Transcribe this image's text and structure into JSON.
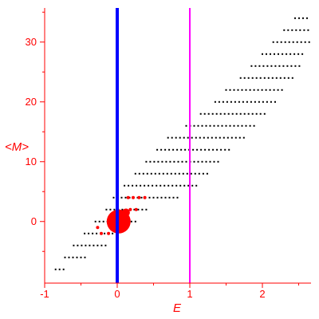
{
  "chart_data": {
    "type": "scatter",
    "title": "",
    "xlabel": "E",
    "ylabel": "<M>",
    "xlim": [
      -1,
      2.67
    ],
    "ylim": [
      -10.3,
      35.7
    ],
    "xticks": [
      -1,
      0,
      1,
      2
    ],
    "yticks": [
      0,
      10,
      20,
      30
    ],
    "grid": false,
    "legend": "none",
    "colors": {
      "axis": "#ff0000",
      "points": "#000000",
      "highlight": "#ff0000",
      "line_a": "#0000ff",
      "line_b": "#ff00ff"
    },
    "vertical_lines": [
      {
        "x": 0,
        "color": "#0000ff"
      },
      {
        "x": 1,
        "color": "#ff00ff"
      }
    ],
    "series": [
      {
        "color": "#000000",
        "bands": [
          {
            "y": -8,
            "x": [
              -0.85,
              -0.72
            ]
          },
          {
            "y": -6,
            "x": [
              -0.72,
              -0.42
            ]
          },
          {
            "y": -4,
            "x": [
              -0.6,
              -0.15
            ]
          },
          {
            "y": -2,
            "x": [
              -0.45,
              0.0
            ]
          },
          {
            "y": 0,
            "x": [
              -0.3,
              0.25
            ]
          },
          {
            "y": 2,
            "x": [
              -0.15,
              0.4
            ]
          },
          {
            "y": 4,
            "x": [
              -0.05,
              0.85
            ]
          },
          {
            "y": 6,
            "x": [
              0.1,
              1.1
            ]
          },
          {
            "y": 8,
            "x": [
              0.25,
              1.25
            ]
          },
          {
            "y": 10,
            "x": [
              0.4,
              1.4
            ]
          },
          {
            "y": 12,
            "x": [
              0.55,
              1.55
            ]
          },
          {
            "y": 14,
            "x": [
              0.7,
              1.75
            ]
          },
          {
            "y": 16,
            "x": [
              0.95,
              1.9
            ]
          },
          {
            "y": 18,
            "x": [
              1.15,
              2.05
            ]
          },
          {
            "y": 20,
            "x": [
              1.35,
              2.2
            ]
          },
          {
            "y": 22,
            "x": [
              1.5,
              2.3
            ]
          },
          {
            "y": 24,
            "x": [
              1.7,
              2.45
            ]
          },
          {
            "y": 26,
            "x": [
              1.85,
              2.55
            ]
          },
          {
            "y": 28,
            "x": [
              2.0,
              2.6
            ]
          },
          {
            "y": 30,
            "x": [
              2.15,
              2.65
            ]
          },
          {
            "y": 32,
            "x": [
              2.3,
              2.65
            ]
          },
          {
            "y": 34,
            "x": [
              2.45,
              2.65
            ]
          }
        ]
      },
      {
        "color": "#ff0000",
        "points": [
          {
            "x": 0.02,
            "y": 0.0,
            "size": "large"
          },
          {
            "x": 0.12,
            "y": 1.5,
            "size": "medium"
          },
          {
            "x": 0.18,
            "y": 2.0,
            "size": "small"
          },
          {
            "x": 0.26,
            "y": 2.0,
            "size": "small"
          },
          {
            "x": 0.15,
            "y": 4.0,
            "size": "small"
          },
          {
            "x": 0.22,
            "y": 4.0,
            "size": "small"
          },
          {
            "x": 0.3,
            "y": 4.0,
            "size": "small"
          },
          {
            "x": 0.38,
            "y": 4.0,
            "size": "small"
          },
          {
            "x": -0.27,
            "y": -1.0,
            "size": "small"
          },
          {
            "x": -0.22,
            "y": -2.0,
            "size": "small"
          },
          {
            "x": -0.12,
            "y": -2.0,
            "size": "small"
          },
          {
            "x": -0.05,
            "y": -1.0,
            "size": "small"
          }
        ]
      }
    ]
  }
}
